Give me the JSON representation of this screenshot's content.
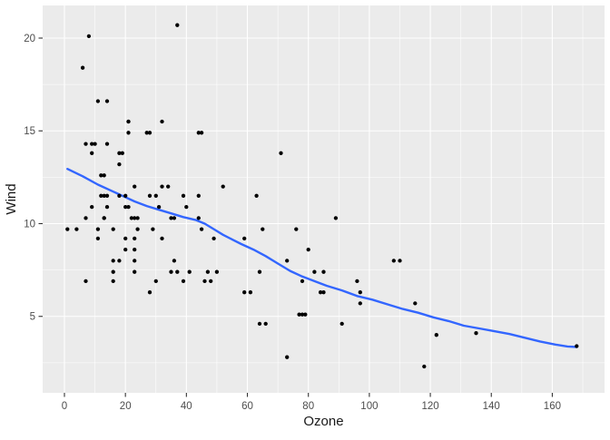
{
  "figure": {
    "xlabel": "Ozone",
    "ylabel": "Wind"
  },
  "chart_data": {
    "type": "scatter",
    "title": "",
    "xlabel": "Ozone",
    "ylabel": "Wind",
    "legend": "none",
    "grid": "major-and-minor-white-on-gray",
    "x_ticks": [
      0,
      20,
      40,
      60,
      80,
      100,
      120,
      140,
      160
    ],
    "x_minor_ticks": [
      10,
      30,
      50,
      70,
      90,
      110,
      130,
      150,
      170
    ],
    "y_ticks": [
      5,
      10,
      15,
      20
    ],
    "y_minor_ticks": [
      2.5,
      7.5,
      12.5,
      17.5
    ],
    "xlim": [
      -7.14,
      177.14
    ],
    "ylim": [
      0.88,
      21.76
    ],
    "points": [
      [
        41,
        7.4
      ],
      [
        36,
        8
      ],
      [
        12,
        12.6
      ],
      [
        18,
        11.5
      ],
      [
        28,
        14.9
      ],
      [
        23,
        8.6
      ],
      [
        19,
        13.8
      ],
      [
        8,
        20.1
      ],
      [
        7,
        6.9
      ],
      [
        16,
        9.7
      ],
      [
        11,
        9.2
      ],
      [
        14,
        10.9
      ],
      [
        18,
        13.2
      ],
      [
        14,
        11.5
      ],
      [
        34,
        12
      ],
      [
        6,
        18.4
      ],
      [
        30,
        11.5
      ],
      [
        11,
        9.7
      ],
      [
        1,
        9.7
      ],
      [
        11,
        16.6
      ],
      [
        4,
        9.7
      ],
      [
        32,
        12
      ],
      [
        23,
        12
      ],
      [
        45,
        14.9
      ],
      [
        115,
        5.7
      ],
      [
        37,
        7.4
      ],
      [
        29,
        9.7
      ],
      [
        71,
        13.8
      ],
      [
        39,
        11.5
      ],
      [
        23,
        8
      ],
      [
        21,
        14.9
      ],
      [
        37,
        20.7
      ],
      [
        20,
        9.2
      ],
      [
        12,
        11.5
      ],
      [
        13,
        10.3
      ],
      [
        135,
        4.1
      ],
      [
        49,
        9.2
      ],
      [
        32,
        9.2
      ],
      [
        64,
        4.6
      ],
      [
        40,
        10.9
      ],
      [
        77,
        5.1
      ],
      [
        97,
        6.3
      ],
      [
        97,
        5.7
      ],
      [
        85,
        7.4
      ],
      [
        10,
        14.3
      ],
      [
        27,
        14.9
      ],
      [
        7,
        14.3
      ],
      [
        48,
        6.9
      ],
      [
        35,
        10.3
      ],
      [
        61,
        6.3
      ],
      [
        79,
        5.1
      ],
      [
        63,
        11.5
      ],
      [
        16,
        6.9
      ],
      [
        80,
        8.6
      ],
      [
        108,
        8
      ],
      [
        20,
        8.6
      ],
      [
        52,
        12
      ],
      [
        82,
        7.4
      ],
      [
        50,
        7.4
      ],
      [
        64,
        7.4
      ],
      [
        59,
        9.2
      ],
      [
        39,
        6.9
      ],
      [
        9,
        13.8
      ],
      [
        16,
        7.4
      ],
      [
        78,
        6.9
      ],
      [
        35,
        7.4
      ],
      [
        66,
        4.6
      ],
      [
        122,
        4
      ],
      [
        89,
        10.3
      ],
      [
        110,
        8
      ],
      [
        44,
        11.5
      ],
      [
        28,
        11.5
      ],
      [
        65,
        9.7
      ],
      [
        22,
        10.3
      ],
      [
        59,
        6.3
      ],
      [
        23,
        7.4
      ],
      [
        31,
        10.9
      ],
      [
        44,
        10.3
      ],
      [
        21,
        15.5
      ],
      [
        9,
        14.3
      ],
      [
        45,
        9.7
      ],
      [
        168,
        3.4
      ],
      [
        73,
        8
      ],
      [
        76,
        9.7
      ],
      [
        118,
        2.3
      ],
      [
        84,
        6.3
      ],
      [
        85,
        6.3
      ],
      [
        96,
        6.9
      ],
      [
        78,
        5.1
      ],
      [
        73,
        2.8
      ],
      [
        91,
        4.6
      ],
      [
        47,
        7.4
      ],
      [
        32,
        15.5
      ],
      [
        20,
        10.9
      ],
      [
        23,
        10.3
      ],
      [
        21,
        10.9
      ],
      [
        24,
        9.7
      ],
      [
        44,
        14.9
      ],
      [
        21,
        15.5
      ],
      [
        28,
        6.3
      ],
      [
        9,
        10.9
      ],
      [
        13,
        11.5
      ],
      [
        46,
        6.9
      ],
      [
        18,
        13.8
      ],
      [
        13,
        10.3
      ],
      [
        24,
        10.3
      ],
      [
        16,
        8
      ],
      [
        13,
        12.6
      ],
      [
        23,
        9.2
      ],
      [
        36,
        10.3
      ],
      [
        7,
        10.3
      ],
      [
        14,
        16.6
      ],
      [
        30,
        6.9
      ],
      [
        14,
        14.3
      ],
      [
        18,
        8
      ],
      [
        20,
        11.5
      ]
    ],
    "smooth_line": {
      "label": "loess fit",
      "points": [
        [
          1,
          12.95
        ],
        [
          6,
          12.55
        ],
        [
          11,
          12.1
        ],
        [
          15,
          11.8
        ],
        [
          19,
          11.5
        ],
        [
          23,
          11.2
        ],
        [
          27,
          10.95
        ],
        [
          31,
          10.75
        ],
        [
          35,
          10.55
        ],
        [
          39,
          10.35
        ],
        [
          43,
          10.2
        ],
        [
          46,
          10.0
        ],
        [
          49,
          9.7
        ],
        [
          52,
          9.4
        ],
        [
          55,
          9.15
        ],
        [
          58,
          8.9
        ],
        [
          62,
          8.6
        ],
        [
          66,
          8.25
        ],
        [
          70,
          7.85
        ],
        [
          74,
          7.45
        ],
        [
          78,
          7.15
        ],
        [
          82,
          6.9
        ],
        [
          86,
          6.65
        ],
        [
          91,
          6.4
        ],
        [
          96,
          6.1
        ],
        [
          101,
          5.9
        ],
        [
          106,
          5.65
        ],
        [
          111,
          5.4
        ],
        [
          116,
          5.2
        ],
        [
          121,
          4.95
        ],
        [
          126,
          4.75
        ],
        [
          131,
          4.5
        ],
        [
          136,
          4.35
        ],
        [
          141,
          4.2
        ],
        [
          146,
          4.05
        ],
        [
          151,
          3.85
        ],
        [
          156,
          3.65
        ],
        [
          161,
          3.48
        ],
        [
          165,
          3.38
        ],
        [
          168,
          3.35
        ]
      ]
    },
    "colors": {
      "panel_background": "#EBEBEB",
      "gridline": "#FFFFFF",
      "point": "#000000",
      "smooth_line": "#3366FF",
      "tick_label": "#4D4D4D",
      "axis_title": "#1A1A1A",
      "tick_mark": "#333333",
      "outer_background": "#FFFFFF"
    }
  }
}
